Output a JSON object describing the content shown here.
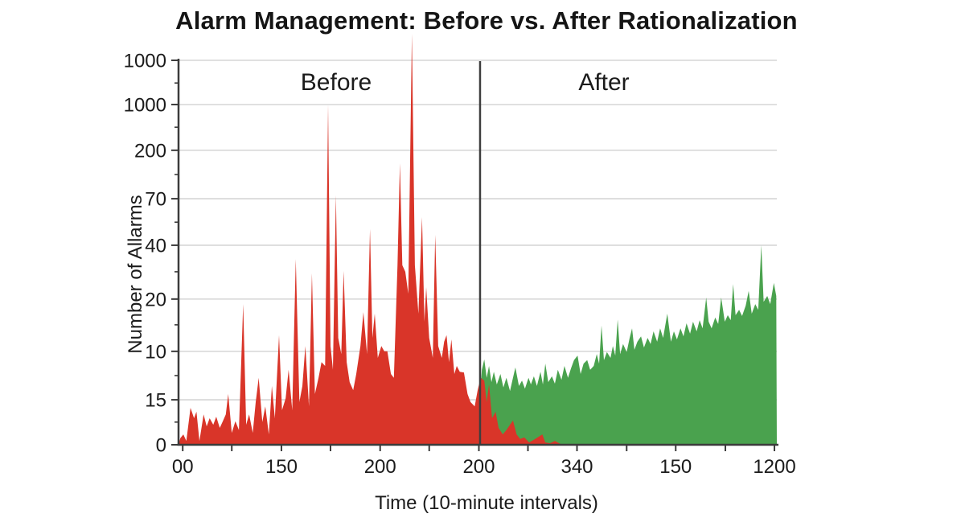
{
  "figure": {
    "background": "#ffffff"
  },
  "chart": {
    "title": "Alarm Management: Before vs. After Rationalization",
    "x_axis_label": "Time (10-minute intervals)",
    "y_axis_label": "Number of Allarms",
    "region_labels": {
      "before": "Before",
      "after": "After"
    },
    "colors": {
      "before_fill": "#d93529",
      "after_fill": "#4aa24e",
      "axis": "#3b3b3b",
      "grid": "#cdcdcd",
      "divider": "#3e3e3e",
      "text": "#1b1b1b",
      "title": "#151515"
    }
  },
  "chart_data": {
    "type": "area",
    "title": "Alarm Management: Before vs. After Rationalization",
    "xlabel": "Time (10-minute intervals)",
    "ylabel": "Number of Allarms",
    "grid": true,
    "legend": false,
    "divider_x_pct": 50.4,
    "y_ticks": [
      {
        "label": "1000",
        "pos_pct": 0
      },
      {
        "label": "1000",
        "pos_pct": 11.5
      },
      {
        "label": "200",
        "pos_pct": 23.4
      },
      {
        "label": "70",
        "pos_pct": 36.0
      },
      {
        "label": "40",
        "pos_pct": 48.1
      },
      {
        "label": "20",
        "pos_pct": 62.1
      },
      {
        "label": "10",
        "pos_pct": 75.7
      },
      {
        "label": "15",
        "pos_pct": 88.3
      },
      {
        "label": "0",
        "pos_pct": 100
      }
    ],
    "y_minor_tick_pcts": [
      5.9,
      17.4,
      29.7,
      42.1,
      55.0,
      68.8,
      82.0,
      94.1
    ],
    "x_major_ticks": [
      {
        "label": "00",
        "pos_pct": 0.7
      },
      {
        "label": "150",
        "pos_pct": 17.2
      },
      {
        "label": "200",
        "pos_pct": 33.7
      },
      {
        "label": "200",
        "pos_pct": 50.2
      },
      {
        "label": "340",
        "pos_pct": 66.6
      },
      {
        "label": "150",
        "pos_pct": 83.1
      },
      {
        "label": "1200",
        "pos_pct": 99.6
      }
    ],
    "x_all_tick_pcts": [
      0.7,
      8.9,
      17.2,
      25.4,
      33.7,
      41.9,
      50.2,
      58.4,
      66.6,
      74.9,
      83.1,
      91.4,
      99.6
    ],
    "series": [
      {
        "name": "Before",
        "color": "#d93529",
        "points": [
          [
            0,
            0
          ],
          [
            0.3,
            1.7
          ],
          [
            0.8,
            2.7
          ],
          [
            1.3,
            1.0
          ],
          [
            2.0,
            9.6
          ],
          [
            2.6,
            6.9
          ],
          [
            3.0,
            8.6
          ],
          [
            3.5,
            1.0
          ],
          [
            4.2,
            7.9
          ],
          [
            4.7,
            4.8
          ],
          [
            5.2,
            6.9
          ],
          [
            5.8,
            5.2
          ],
          [
            6.3,
            7.3
          ],
          [
            6.9,
            4.4
          ],
          [
            7.4,
            6.1
          ],
          [
            7.9,
            7.9
          ],
          [
            8.3,
            13.2
          ],
          [
            8.9,
            3.1
          ],
          [
            9.5,
            6.1
          ],
          [
            10.1,
            3.8
          ],
          [
            10.8,
            36.6
          ],
          [
            11.3,
            5.2
          ],
          [
            11.8,
            7.9
          ],
          [
            12.4,
            3.1
          ],
          [
            12.9,
            11.1
          ],
          [
            13.4,
            17.4
          ],
          [
            14.0,
            5.9
          ],
          [
            14.5,
            10.0
          ],
          [
            15.1,
            2.7
          ],
          [
            15.6,
            15.3
          ],
          [
            16.1,
            6.9
          ],
          [
            16.8,
            28.5
          ],
          [
            17.3,
            9.0
          ],
          [
            17.9,
            12.1
          ],
          [
            18.4,
            19.5
          ],
          [
            19.0,
            9.0
          ],
          [
            19.6,
            48.3
          ],
          [
            20.2,
            11.1
          ],
          [
            20.7,
            15.3
          ],
          [
            21.2,
            25.7
          ],
          [
            21.8,
            10.0
          ],
          [
            22.3,
            44.6
          ],
          [
            22.8,
            13.2
          ],
          [
            23.4,
            17.4
          ],
          [
            23.9,
            21.5
          ],
          [
            24.5,
            20.5
          ],
          [
            25.0,
            88.5
          ],
          [
            25.4,
            25.7
          ],
          [
            25.8,
            19.5
          ],
          [
            26.3,
            64.9
          ],
          [
            26.7,
            27.8
          ],
          [
            27.2,
            23.6
          ],
          [
            27.6,
            45.2
          ],
          [
            28.1,
            21.5
          ],
          [
            28.6,
            16.3
          ],
          [
            29.2,
            14.2
          ],
          [
            29.7,
            18.4
          ],
          [
            30.4,
            25.7
          ],
          [
            30.9,
            34.5
          ],
          [
            31.5,
            23.6
          ],
          [
            32.0,
            56.1
          ],
          [
            32.4,
            27.8
          ],
          [
            32.8,
            34.1
          ],
          [
            33.3,
            22.6
          ],
          [
            33.9,
            25.7
          ],
          [
            34.4,
            24.3
          ],
          [
            34.9,
            24.3
          ],
          [
            35.5,
            18.4
          ],
          [
            36.0,
            17.4
          ],
          [
            36.6,
            46.7
          ],
          [
            37.0,
            73.2
          ],
          [
            37.4,
            46.7
          ],
          [
            37.9,
            45.0
          ],
          [
            38.4,
            39.3
          ],
          [
            39.0,
            106.9
          ],
          [
            39.5,
            46.7
          ],
          [
            40.1,
            34.1
          ],
          [
            40.7,
            59.2
          ],
          [
            41.1,
            32.0
          ],
          [
            41.4,
            41.0
          ],
          [
            41.9,
            27.8
          ],
          [
            42.5,
            22.6
          ],
          [
            42.9,
            54.6
          ],
          [
            43.4,
            25.7
          ],
          [
            44.0,
            22.6
          ],
          [
            44.4,
            26.8
          ],
          [
            44.8,
            28.5
          ],
          [
            45.2,
            21.5
          ],
          [
            45.6,
            27.4
          ],
          [
            46.1,
            18.4
          ],
          [
            46.5,
            20.5
          ],
          [
            47.0,
            19.0
          ],
          [
            47.7,
            18.8
          ],
          [
            48.3,
            13.2
          ],
          [
            48.8,
            11.1
          ],
          [
            49.5,
            10.0
          ],
          [
            50.0,
            14.2
          ],
          [
            50.5,
            17.4
          ],
          [
            51.1,
            16.7
          ],
          [
            51.5,
            11.1
          ],
          [
            51.9,
            15.7
          ],
          [
            52.4,
            6.9
          ],
          [
            53.0,
            8.6
          ],
          [
            53.5,
            4.4
          ],
          [
            54.2,
            2.7
          ],
          [
            54.8,
            3.8
          ],
          [
            55.4,
            5.2
          ],
          [
            55.9,
            6.3
          ],
          [
            56.5,
            2.7
          ],
          [
            57.1,
            1.5
          ],
          [
            57.8,
            1.9
          ],
          [
            58.6,
            0.6
          ],
          [
            59.4,
            1.3
          ],
          [
            60.2,
            2.1
          ],
          [
            60.8,
            2.7
          ],
          [
            61.3,
            0.6
          ],
          [
            62.1,
            0.4
          ],
          [
            62.9,
            1.0
          ],
          [
            63.6,
            0.4
          ],
          [
            64.2,
            0
          ]
        ]
      },
      {
        "name": "After",
        "color": "#4aa24e",
        "points": [
          [
            49.9,
            0
          ],
          [
            50.3,
            11.1
          ],
          [
            50.7,
            19.5
          ],
          [
            51.1,
            22.2
          ],
          [
            51.5,
            17.4
          ],
          [
            51.9,
            20.5
          ],
          [
            52.3,
            16.3
          ],
          [
            52.7,
            19.0
          ],
          [
            53.2,
            15.7
          ],
          [
            53.8,
            18.4
          ],
          [
            54.3,
            14.9
          ],
          [
            54.8,
            17.4
          ],
          [
            55.4,
            14.0
          ],
          [
            55.9,
            17.4
          ],
          [
            56.3,
            20.1
          ],
          [
            56.9,
            15.3
          ],
          [
            57.4,
            16.7
          ],
          [
            57.9,
            14.6
          ],
          [
            58.5,
            17.4
          ],
          [
            58.9,
            15.7
          ],
          [
            59.4,
            17.8
          ],
          [
            59.9,
            15.3
          ],
          [
            60.5,
            19.0
          ],
          [
            60.9,
            15.7
          ],
          [
            61.3,
            21.1
          ],
          [
            61.8,
            16.3
          ],
          [
            62.4,
            17.8
          ],
          [
            62.9,
            15.9
          ],
          [
            63.4,
            19.5
          ],
          [
            64.0,
            16.9
          ],
          [
            64.5,
            20.5
          ],
          [
            65.1,
            17.4
          ],
          [
            65.6,
            19.9
          ],
          [
            66.1,
            22.0
          ],
          [
            66.7,
            23.2
          ],
          [
            67.2,
            18.4
          ],
          [
            67.7,
            21.1
          ],
          [
            68.3,
            22.0
          ],
          [
            68.8,
            19.5
          ],
          [
            69.4,
            20.5
          ],
          [
            69.9,
            23.6
          ],
          [
            70.3,
            21.1
          ],
          [
            70.7,
            31.0
          ],
          [
            71.1,
            22.0
          ],
          [
            71.6,
            24.1
          ],
          [
            72.2,
            22.6
          ],
          [
            72.6,
            25.7
          ],
          [
            73.0,
            23.2
          ],
          [
            73.4,
            32.6
          ],
          [
            73.8,
            23.6
          ],
          [
            74.3,
            26.2
          ],
          [
            74.9,
            24.1
          ],
          [
            75.4,
            27.8
          ],
          [
            75.8,
            30.3
          ],
          [
            76.2,
            24.7
          ],
          [
            76.7,
            26.8
          ],
          [
            77.3,
            28.2
          ],
          [
            77.8,
            25.3
          ],
          [
            78.4,
            27.8
          ],
          [
            78.9,
            26.2
          ],
          [
            79.4,
            29.5
          ],
          [
            80.0,
            26.8
          ],
          [
            80.5,
            30.3
          ],
          [
            81.0,
            27.8
          ],
          [
            81.7,
            34.1
          ],
          [
            82.3,
            26.8
          ],
          [
            82.8,
            29.5
          ],
          [
            83.3,
            27.4
          ],
          [
            83.9,
            30.3
          ],
          [
            84.4,
            28.2
          ],
          [
            84.9,
            31.6
          ],
          [
            85.5,
            28.9
          ],
          [
            86.0,
            32.0
          ],
          [
            86.6,
            29.5
          ],
          [
            87.1,
            32.4
          ],
          [
            87.6,
            30.3
          ],
          [
            88.2,
            38.3
          ],
          [
            88.6,
            32.0
          ],
          [
            89.1,
            30.3
          ],
          [
            89.7,
            33.1
          ],
          [
            90.2,
            31.4
          ],
          [
            90.7,
            38.3
          ],
          [
            91.3,
            32.0
          ],
          [
            91.8,
            33.7
          ],
          [
            92.3,
            32.4
          ],
          [
            92.7,
            41.8
          ],
          [
            93.1,
            33.7
          ],
          [
            93.7,
            35.1
          ],
          [
            94.2,
            33.5
          ],
          [
            94.8,
            36.2
          ],
          [
            95.3,
            40.0
          ],
          [
            95.8,
            34.1
          ],
          [
            96.4,
            36.6
          ],
          [
            96.9,
            35.1
          ],
          [
            97.4,
            51.9
          ],
          [
            97.8,
            37.2
          ],
          [
            98.4,
            38.7
          ],
          [
            98.9,
            36.6
          ],
          [
            99.5,
            42.1
          ],
          [
            99.9,
            38.7
          ],
          [
            100,
            0
          ]
        ]
      }
    ]
  }
}
